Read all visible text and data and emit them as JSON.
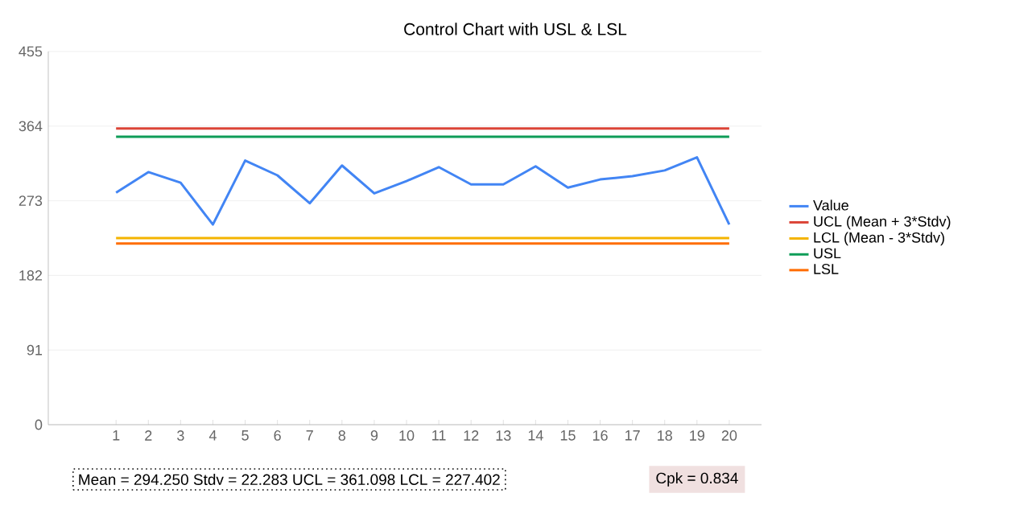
{
  "chart_data": {
    "type": "line",
    "title": "Control Chart with USL & LSL",
    "categories": [
      "1",
      "2",
      "3",
      "4",
      "5",
      "6",
      "7",
      "8",
      "9",
      "10",
      "11",
      "12",
      "13",
      "14",
      "15",
      "16",
      "17",
      "18",
      "19",
      "20"
    ],
    "series": [
      {
        "name": "Value",
        "color": "#4285f4",
        "values": [
          283,
          308,
          295,
          244,
          322,
          304,
          270,
          316,
          282,
          297,
          314,
          293,
          293,
          315,
          289,
          299,
          303,
          310,
          326,
          244
        ]
      },
      {
        "name": "UCL (Mean + 3*Stdv)",
        "color": "#db4437",
        "values": [
          361.098,
          361.098,
          361.098,
          361.098,
          361.098,
          361.098,
          361.098,
          361.098,
          361.098,
          361.098,
          361.098,
          361.098,
          361.098,
          361.098,
          361.098,
          361.098,
          361.098,
          361.098,
          361.098,
          361.098
        ]
      },
      {
        "name": "LCL (Mean - 3*Stdv)",
        "color": "#f4b400",
        "values": [
          227.402,
          227.402,
          227.402,
          227.402,
          227.402,
          227.402,
          227.402,
          227.402,
          227.402,
          227.402,
          227.402,
          227.402,
          227.402,
          227.402,
          227.402,
          227.402,
          227.402,
          227.402,
          227.402,
          227.402
        ]
      },
      {
        "name": "USL",
        "color": "#0f9d58",
        "values": [
          351,
          351,
          351,
          351,
          351,
          351,
          351,
          351,
          351,
          351,
          351,
          351,
          351,
          351,
          351,
          351,
          351,
          351,
          351,
          351
        ]
      },
      {
        "name": "LSL",
        "color": "#ff6d01",
        "values": [
          221,
          221,
          221,
          221,
          221,
          221,
          221,
          221,
          221,
          221,
          221,
          221,
          221,
          221,
          221,
          221,
          221,
          221,
          221,
          221
        ]
      }
    ],
    "ylim": [
      0,
      455
    ],
    "yticks": [
      0,
      91,
      182,
      273,
      364,
      455
    ],
    "grid": "y",
    "legend": "right",
    "marker": "none",
    "line_style": "solid",
    "annotations": [
      "Mean = 294.250  Stdv = 22.283  UCL = 361.098  LCL = 227.402",
      "Cpk = 0.834"
    ]
  }
}
